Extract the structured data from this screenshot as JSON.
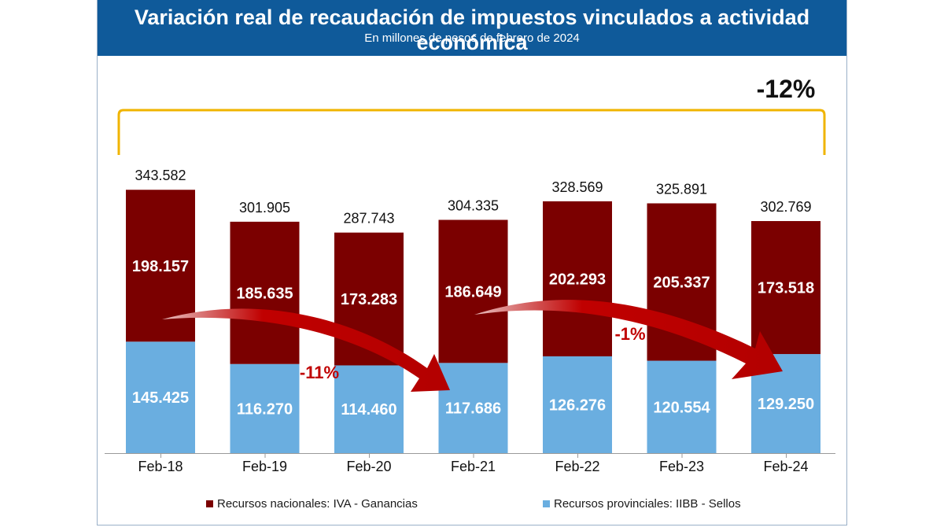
{
  "header": {
    "title": "Variación real de recaudación de impuestos vinculados a actividad económica",
    "subtitle": "En millones de pesos de febrero de 2024"
  },
  "colors": {
    "header_bg": "#0f5a9a",
    "nacional": "#7b0000",
    "provincial": "#6aaee0",
    "bracket": "#f0b400",
    "arrow": "#c00000"
  },
  "chart_data": {
    "type": "bar",
    "stacked": true,
    "categories": [
      "Feb-18",
      "Feb-19",
      "Feb-20",
      "Feb-21",
      "Feb-22",
      "Feb-23",
      "Feb-24"
    ],
    "series": [
      {
        "name": "Recursos provinciales: IIBB - Sellos",
        "values": [
          145.425,
          116.27,
          114.46,
          117.686,
          126.276,
          120.554,
          129.25
        ],
        "labels": [
          "145.425",
          "116.270",
          "114.460",
          "117.686",
          "126.276",
          "120.554",
          "129.250"
        ]
      },
      {
        "name": "Recursos nacionales: IVA - Ganancias",
        "values": [
          198.157,
          185.635,
          173.283,
          186.649,
          202.293,
          205.337,
          173.518
        ],
        "labels": [
          "198.157",
          "185.635",
          "173.283",
          "186.649",
          "202.293",
          "205.337",
          "173.518"
        ]
      }
    ],
    "totals": [
      343.582,
      301.905,
      287.743,
      304.335,
      328.569,
      325.891,
      302.769
    ],
    "total_labels": [
      "343.582",
      "301.905",
      "287.743",
      "304.335",
      "328.569",
      "325.891",
      "302.769"
    ],
    "ylim": [
      0,
      400
    ],
    "annotations": [
      {
        "text": "-11%",
        "from": "Feb-18",
        "to": "Feb-21"
      },
      {
        "text": "-1%",
        "from": "Feb-21",
        "to": "Feb-24"
      },
      {
        "text": "-12%",
        "from": "Feb-18",
        "to": "Feb-24"
      }
    ],
    "legend_position": "bottom"
  },
  "legend": {
    "nacional_label": "Recursos nacionales: IVA - Ganancias",
    "provincial_label": "Recursos provinciales: IIBB - Sellos"
  }
}
